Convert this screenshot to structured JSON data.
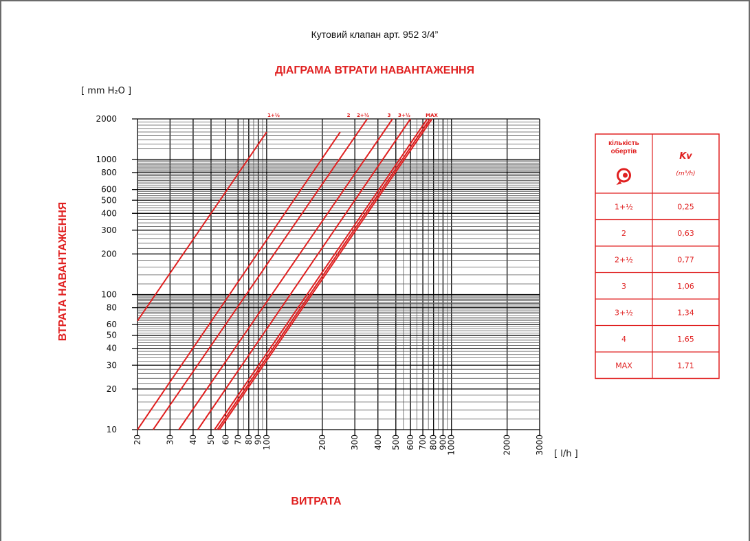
{
  "header": {
    "subtitle": "Кутовий клапан арт. 952 3/4”"
  },
  "chart_data": {
    "type": "line",
    "title": "ДІАГРАМА ВТРАТИ НАВАНТАЖЕННЯ",
    "xlabel": "ВИТРАТА",
    "ylabel": "ВТРАТА НАВАНТАЖЕННЯ",
    "x_unit": "[ l/h ]",
    "y_unit": "[ mm H₂O ]",
    "x_scale": "log",
    "y_scale": "log",
    "xlim": [
      20,
      3000
    ],
    "ylim": [
      10,
      2000
    ],
    "x_ticks": [
      20,
      30,
      40,
      50,
      60,
      70,
      80,
      90,
      100,
      200,
      300,
      400,
      500,
      600,
      700,
      800,
      900,
      1000,
      2000,
      3000
    ],
    "y_ticks": [
      10,
      20,
      30,
      40,
      50,
      60,
      80,
      100,
      200,
      300,
      400,
      500,
      600,
      800,
      1000,
      2000
    ],
    "grid": true,
    "series": [
      {
        "name": "1+½",
        "kv": 0.25,
        "points": [
          [
            20,
            64
          ],
          [
            100,
            1600
          ]
        ]
      },
      {
        "name": "2",
        "kv": 0.63,
        "points": [
          [
            20,
            10
          ],
          [
            250,
            1600
          ]
        ]
      },
      {
        "name": "2+½",
        "kv": 0.77,
        "points": [
          [
            24.3,
            10
          ],
          [
            350,
            2000
          ]
        ]
      },
      {
        "name": "3",
        "kv": 1.06,
        "points": [
          [
            33.5,
            10
          ],
          [
            480,
            2000
          ]
        ]
      },
      {
        "name": "3+½",
        "kv": 1.34,
        "points": [
          [
            42.4,
            10
          ],
          [
            600,
            2000
          ]
        ]
      },
      {
        "name": "4",
        "kv": 1.65,
        "points": [
          [
            52.2,
            10
          ],
          [
            740,
            2000
          ]
        ]
      },
      {
        "name": "MAX",
        "kv": 1.71,
        "points": [
          [
            54.1,
            10
          ],
          [
            765,
            2000
          ]
        ]
      }
    ]
  },
  "kv_table": {
    "col1_header": "кількість обертів",
    "col2_header": "Kv",
    "col2_unit": "(m³/h)",
    "icon": "rotation-knob-icon",
    "rows": [
      {
        "turns": "1+½",
        "kv": "0,25"
      },
      {
        "turns": "2",
        "kv": "0,63"
      },
      {
        "turns": "2+½",
        "kv": "0,77"
      },
      {
        "turns": "3",
        "kv": "1,06"
      },
      {
        "turns": "3+½",
        "kv": "1,34"
      },
      {
        "turns": "4",
        "kv": "1,65"
      },
      {
        "turns": "MAX",
        "kv": "1,71"
      }
    ]
  },
  "colors": {
    "accent": "#e02020",
    "grid": "#000000"
  }
}
